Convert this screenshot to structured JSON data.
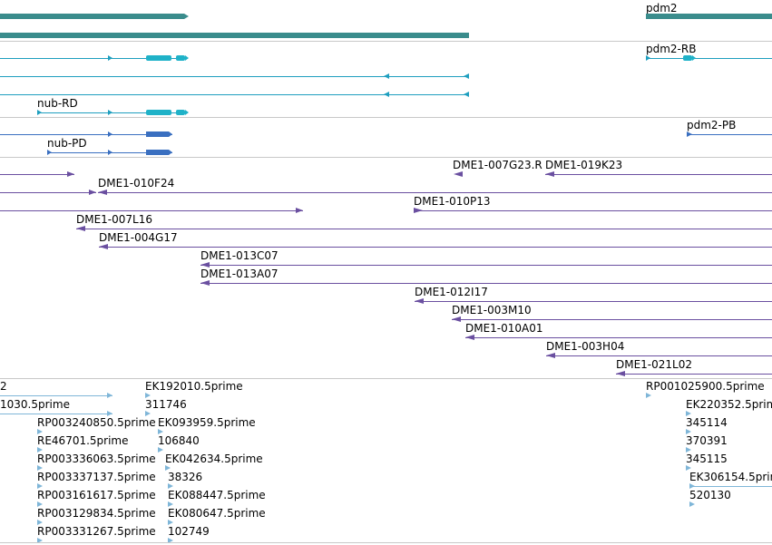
{
  "colors": {
    "gene": "#3a8c8c",
    "transcript": "#1f9fbf",
    "protein": "#3a6fc0",
    "clone": "#6a4fa0",
    "est": "#7fb6d8",
    "separator": "#c8c8c8"
  },
  "gene_track": {
    "left_gene_label": "",
    "right_gene_label": "pdm2"
  },
  "transcript_track": {
    "labels": [
      "nub-RD",
      "pdm2-RB"
    ]
  },
  "protein_track": {
    "labels": [
      "nub-PD",
      "pdm2-PB"
    ]
  },
  "clone_track": {
    "labels": [
      "DME1-007G23.R",
      "DME1-019K23",
      "DME1-010F24",
      "DME1-010P13",
      "DME1-007L16",
      "DME1-004G17",
      "DME1-013C07",
      "DME1-013A07",
      "DME1-012I17",
      "DME1-003M10",
      "DME1-010A01",
      "DME1-003H04",
      "DME1-021L02"
    ]
  },
  "est_track": {
    "labels": [
      "2",
      "1030.5prime",
      "EK192010.5prime",
      "311746",
      "RP003240850.5prime",
      "EK093959.5prime",
      "RE46701.5prime",
      "106840",
      "RP003336063.5prime",
      "EK042634.5prime",
      "RP003337137.5prime",
      "38326",
      "RP003161617.5prime",
      "EK088447.5prime",
      "RP003129834.5prime",
      "EK080647.5prime",
      "RP003331267.5prime",
      "102749",
      "RP001025900.5prime",
      "EK220352.5prime",
      "345114",
      "370391",
      "345115",
      "EK306154.5prime",
      "520130"
    ]
  }
}
